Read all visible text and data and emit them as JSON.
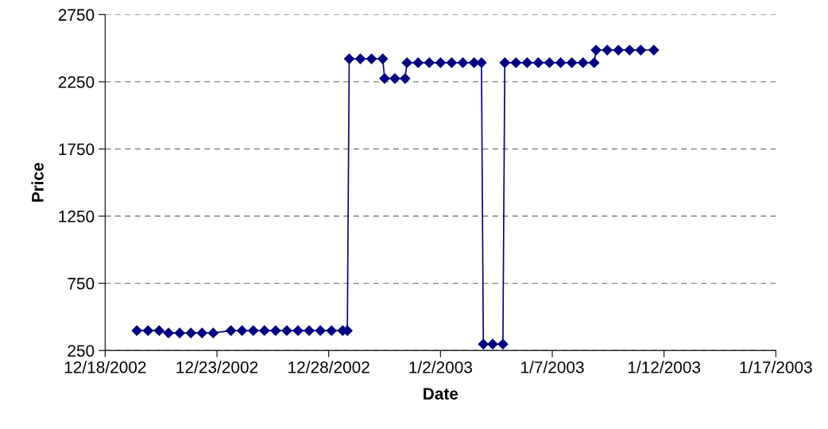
{
  "chart_data": {
    "type": "line",
    "xlabel": "Date",
    "ylabel": "Price",
    "x": [
      "2002-12-19T10:00",
      "2002-12-19T22:00",
      "2002-12-20T10:00",
      "2002-12-20T20:00",
      "2002-12-21T08:00",
      "2002-12-21T20:00",
      "2002-12-22T08:00",
      "2002-12-22T20:00",
      "2002-12-23T15:00",
      "2002-12-24T03:00",
      "2002-12-24T15:00",
      "2002-12-25T03:00",
      "2002-12-25T15:00",
      "2002-12-26T03:00",
      "2002-12-26T15:00",
      "2002-12-27T03:00",
      "2002-12-27T15:00",
      "2002-12-28T03:00",
      "2002-12-28T15:00",
      "2002-12-28T20:00",
      "2002-12-28T22:00",
      "2002-12-29T10:00",
      "2002-12-29T22:00",
      "2002-12-30T10:00",
      "2002-12-30T12:00",
      "2002-12-30T23:00",
      "2002-12-31T10:00",
      "2002-12-31T12:00",
      "2003-01-01T00:00",
      "2003-01-01T12:00",
      "2003-01-02T00:00",
      "2003-01-02T12:00",
      "2003-01-03T00:00",
      "2003-01-03T12:00",
      "2003-01-03T20:00",
      "2003-01-03T22:00",
      "2003-01-04T08:00",
      "2003-01-04T19:00",
      "2003-01-04T21:00",
      "2003-01-05T09:00",
      "2003-01-05T21:00",
      "2003-01-06T09:00",
      "2003-01-06T21:00",
      "2003-01-07T09:00",
      "2003-01-07T21:00",
      "2003-01-08T09:00",
      "2003-01-08T21:00",
      "2003-01-08T23:00",
      "2003-01-09T11:00",
      "2003-01-09T23:00",
      "2003-01-10T11:00",
      "2003-01-10T23:00",
      "2003-01-11T13:00"
    ],
    "series": [
      {
        "color": "#000080",
        "values": [
          398,
          398,
          398,
          380,
          380,
          380,
          380,
          380,
          398,
          398,
          398,
          398,
          398,
          398,
          398,
          398,
          398,
          398,
          398,
          398,
          2421,
          2421,
          2421,
          2421,
          2274,
          2274,
          2274,
          2392,
          2392,
          2392,
          2392,
          2392,
          2392,
          2392,
          2392,
          297,
          297,
          297,
          2392,
          2392,
          2392,
          2392,
          2392,
          2392,
          2392,
          2392,
          2392,
          2486,
          2486,
          2486,
          2486,
          2486,
          2486
        ]
      }
    ],
    "xlim": [
      "2002-12-18",
      "2003-01-17"
    ],
    "xticks": [
      {
        "value": "2002-12-18",
        "label": "12/18/2002"
      },
      {
        "value": "2002-12-23",
        "label": "12/23/2002"
      },
      {
        "value": "2002-12-28",
        "label": "12/28/2002"
      },
      {
        "value": "2003-01-02",
        "label": "1/2/2003"
      },
      {
        "value": "2003-01-07",
        "label": "1/7/2003"
      },
      {
        "value": "2003-01-12",
        "label": "1/12/2003"
      },
      {
        "value": "2003-01-17",
        "label": "1/17/2003"
      }
    ],
    "ylim": [
      250,
      2750
    ],
    "yticks": [
      250,
      750,
      1250,
      1750,
      2250,
      2750
    ],
    "grid": "y",
    "marker": "diamond",
    "line_style": "solid",
    "legend": false
  }
}
